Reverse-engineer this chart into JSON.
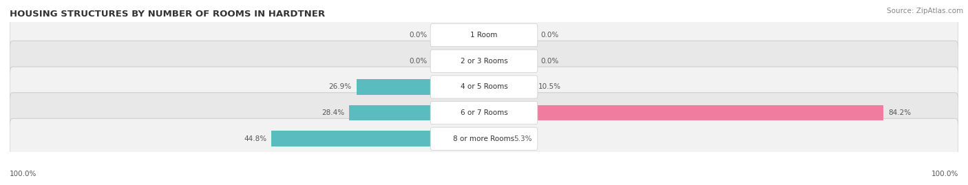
{
  "title": "HOUSING STRUCTURES BY NUMBER OF ROOMS IN HARDTNER",
  "source": "Source: ZipAtlas.com",
  "categories": [
    "1 Room",
    "2 or 3 Rooms",
    "4 or 5 Rooms",
    "6 or 7 Rooms",
    "8 or more Rooms"
  ],
  "owner_values": [
    0.0,
    0.0,
    26.9,
    28.4,
    44.8
  ],
  "renter_values": [
    0.0,
    0.0,
    10.5,
    84.2,
    5.3
  ],
  "owner_color": "#5bbcbf",
  "renter_color": "#f07ca0",
  "row_bg_color_light": "#f2f2f2",
  "row_bg_color_dark": "#e8e8e8",
  "title_fontsize": 9.5,
  "source_fontsize": 7.5,
  "label_fontsize": 7.5,
  "value_fontsize": 7.5,
  "max_value": 100.0,
  "figsize": [
    14.06,
    2.69
  ],
  "dpi": 100
}
